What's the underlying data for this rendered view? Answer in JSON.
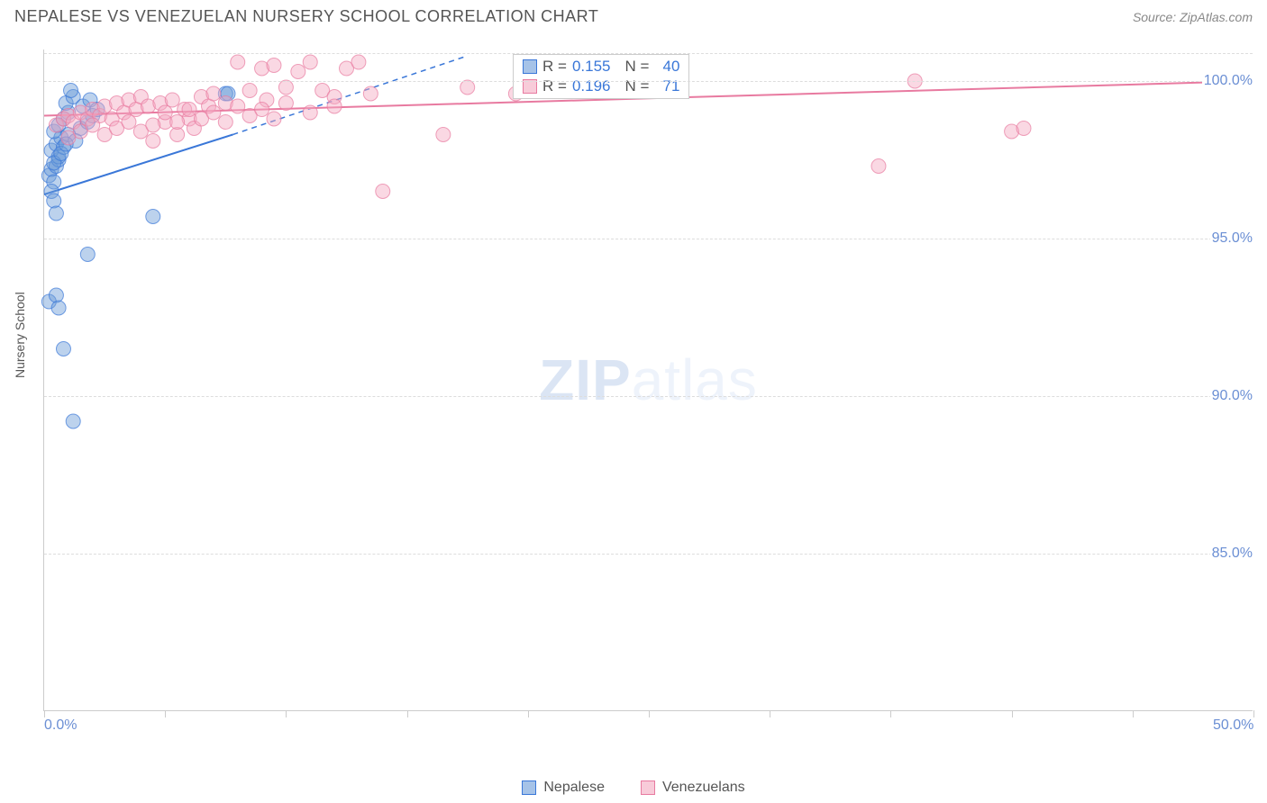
{
  "header": {
    "title": "NEPALESE VS VENEZUELAN NURSERY SCHOOL CORRELATION CHART",
    "source": "Source: ZipAtlas.com"
  },
  "watermark": {
    "bold": "ZIP",
    "light": "atlas"
  },
  "ylabel": "Nursery School",
  "chart": {
    "type": "scatter",
    "background_color": "#ffffff",
    "grid_color": "#dddddd",
    "axis_color": "#cccccc",
    "label_color": "#6b8fd4",
    "title_fontsize": 18,
    "label_fontsize": 14,
    "tick_fontsize": 16,
    "xlim": [
      0,
      50
    ],
    "ylim": [
      80,
      101
    ],
    "xtick_positions": [
      0,
      5,
      10,
      15,
      20,
      25,
      30,
      35,
      40,
      45,
      50
    ],
    "xtick_labels": {
      "0": "0.0%",
      "50": "50.0%"
    },
    "ytick_positions": [
      85,
      90,
      95,
      100
    ],
    "ytick_labels": [
      "85.0%",
      "90.0%",
      "95.0%",
      "100.0%"
    ],
    "marker_radius": 8,
    "marker_opacity": 0.45,
    "line_width": 2,
    "series": [
      {
        "name": "Nepalese",
        "color": "#6b9bd8",
        "stroke": "#3a77d8",
        "R": "0.155",
        "N": "40",
        "points": [
          [
            0.2,
            97.0
          ],
          [
            0.3,
            97.2
          ],
          [
            0.4,
            96.8
          ],
          [
            0.5,
            97.3
          ],
          [
            0.6,
            97.5
          ],
          [
            0.3,
            97.8
          ],
          [
            0.5,
            98.0
          ],
          [
            0.7,
            98.2
          ],
          [
            0.4,
            98.4
          ],
          [
            0.6,
            98.6
          ],
          [
            0.8,
            98.8
          ],
          [
            1.0,
            99.0
          ],
          [
            0.9,
            99.3
          ],
          [
            1.2,
            99.5
          ],
          [
            1.1,
            99.7
          ],
          [
            1.5,
            98.5
          ],
          [
            1.8,
            98.7
          ],
          [
            2.0,
            98.9
          ],
          [
            0.3,
            96.5
          ],
          [
            0.4,
            96.2
          ],
          [
            0.5,
            95.8
          ],
          [
            4.5,
            95.7
          ],
          [
            1.8,
            94.5
          ],
          [
            0.2,
            93.0
          ],
          [
            0.5,
            93.2
          ],
          [
            0.6,
            92.8
          ],
          [
            0.8,
            91.5
          ],
          [
            1.2,
            89.2
          ],
          [
            0.6,
            97.6
          ],
          [
            0.8,
            97.9
          ],
          [
            1.0,
            98.3
          ],
          [
            1.3,
            98.1
          ],
          [
            1.6,
            99.2
          ],
          [
            1.9,
            99.4
          ],
          [
            2.2,
            99.1
          ],
          [
            0.4,
            97.4
          ],
          [
            0.7,
            97.7
          ],
          [
            0.9,
            98.0
          ],
          [
            7.5,
            99.6
          ],
          [
            7.6,
            99.6
          ]
        ],
        "trend_solid": [
          [
            0,
            96.4
          ],
          [
            7.8,
            98.3
          ]
        ],
        "trend_dashed": [
          [
            7.8,
            98.3
          ],
          [
            17.5,
            100.8
          ]
        ]
      },
      {
        "name": "Venezuelans",
        "color": "#f4a8c0",
        "stroke": "#e87aa0",
        "R": "0.196",
        "N": "71",
        "points": [
          [
            0.5,
            98.6
          ],
          [
            0.8,
            98.8
          ],
          [
            1.0,
            98.9
          ],
          [
            1.2,
            98.7
          ],
          [
            1.5,
            99.0
          ],
          [
            1.8,
            98.8
          ],
          [
            2.0,
            99.1
          ],
          [
            2.3,
            98.9
          ],
          [
            2.5,
            99.2
          ],
          [
            2.8,
            98.8
          ],
          [
            3.0,
            99.3
          ],
          [
            3.3,
            99.0
          ],
          [
            3.5,
            99.4
          ],
          [
            3.8,
            99.1
          ],
          [
            4.0,
            99.5
          ],
          [
            4.3,
            99.2
          ],
          [
            4.8,
            99.3
          ],
          [
            5.0,
            98.7
          ],
          [
            5.3,
            99.4
          ],
          [
            5.8,
            99.1
          ],
          [
            6.0,
            98.8
          ],
          [
            6.5,
            99.5
          ],
          [
            6.8,
            99.2
          ],
          [
            7.0,
            99.6
          ],
          [
            4.5,
            98.1
          ],
          [
            5.5,
            98.3
          ],
          [
            6.2,
            98.5
          ],
          [
            7.5,
            99.3
          ],
          [
            8.0,
            100.6
          ],
          [
            8.5,
            99.7
          ],
          [
            9.0,
            100.4
          ],
          [
            9.2,
            99.4
          ],
          [
            9.5,
            100.5
          ],
          [
            10.0,
            99.8
          ],
          [
            10.5,
            100.3
          ],
          [
            11.0,
            100.6
          ],
          [
            11.5,
            99.7
          ],
          [
            12.0,
            99.5
          ],
          [
            12.5,
            100.4
          ],
          [
            13.0,
            100.6
          ],
          [
            13.5,
            99.6
          ],
          [
            16.5,
            98.3
          ],
          [
            14.0,
            96.5
          ],
          [
            17.5,
            99.8
          ],
          [
            19.5,
            99.6
          ],
          [
            22.0,
            99.7
          ],
          [
            34.5,
            97.3
          ],
          [
            36.0,
            100.0
          ],
          [
            40.0,
            98.4
          ],
          [
            40.5,
            98.5
          ],
          [
            1.0,
            98.2
          ],
          [
            1.5,
            98.4
          ],
          [
            2.0,
            98.6
          ],
          [
            2.5,
            98.3
          ],
          [
            3.0,
            98.5
          ],
          [
            3.5,
            98.7
          ],
          [
            4.0,
            98.4
          ],
          [
            4.5,
            98.6
          ],
          [
            5.0,
            99.0
          ],
          [
            5.5,
            98.7
          ],
          [
            6.0,
            99.1
          ],
          [
            6.5,
            98.8
          ],
          [
            7.0,
            99.0
          ],
          [
            7.5,
            98.7
          ],
          [
            8.0,
            99.2
          ],
          [
            8.5,
            98.9
          ],
          [
            9.0,
            99.1
          ],
          [
            9.5,
            98.8
          ],
          [
            10.0,
            99.3
          ],
          [
            11.0,
            99.0
          ],
          [
            12.0,
            99.2
          ]
        ],
        "trend_solid": [
          [
            0,
            98.9
          ],
          [
            50,
            100.0
          ]
        ]
      }
    ]
  },
  "legend_box": {
    "rows": [
      {
        "swatch": "#6b9bd8",
        "border": "#3a77d8",
        "r_label": "R =",
        "r_val": "0.155",
        "n_label": "N =",
        "n_val": "40"
      },
      {
        "swatch": "#f4a8c0",
        "border": "#e87aa0",
        "r_label": "R =",
        "r_val": "0.196",
        "n_label": "N =",
        "n_val": "71"
      }
    ]
  },
  "bottom_legend": [
    {
      "swatch": "#6b9bd8",
      "border": "#3a77d8",
      "label": "Nepalese"
    },
    {
      "swatch": "#f4a8c0",
      "border": "#e87aa0",
      "label": "Venezuelans"
    }
  ]
}
